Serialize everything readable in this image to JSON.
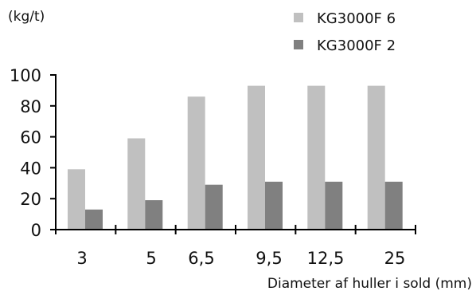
{
  "chart_data": {
    "type": "bar",
    "title": "",
    "ylabel": "(kg/t)",
    "xlabel": "Diameter af huller i sold (mm)",
    "categories": [
      "3",
      "5",
      "6,5",
      "9,5",
      "12,5",
      "25"
    ],
    "series": [
      {
        "name": "KG3000F 6",
        "color": "#c0c0c0",
        "values": [
          39,
          59,
          86,
          93,
          93,
          93
        ]
      },
      {
        "name": "KG3000F 2",
        "color": "#808080",
        "values": [
          13,
          19,
          29,
          31,
          31,
          31
        ]
      }
    ],
    "ylim": [
      0,
      100
    ],
    "yticks": [
      0,
      20,
      40,
      60,
      80,
      100
    ],
    "grid": false,
    "legend_position": "top-right"
  }
}
